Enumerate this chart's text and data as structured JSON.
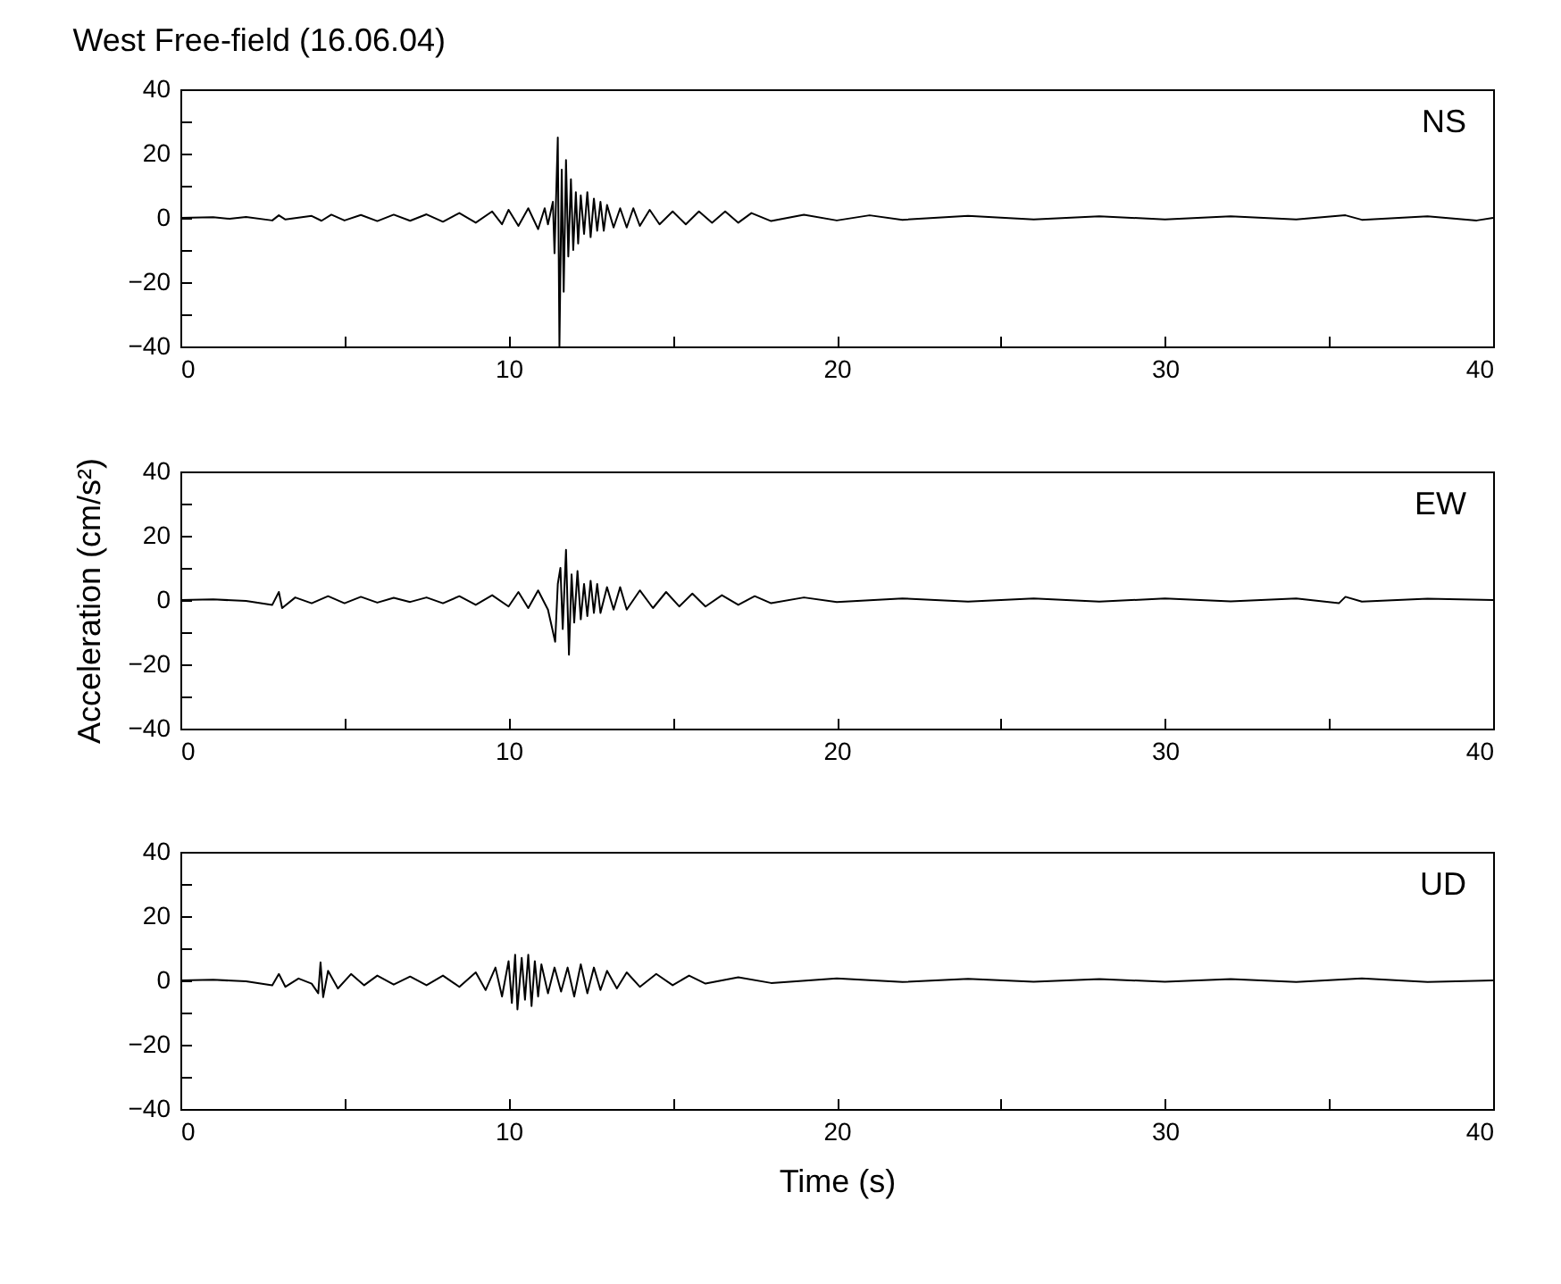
{
  "chart_data": [
    {
      "type": "line",
      "title": "West Free-field (16.06.04)",
      "xlim": [
        0,
        40
      ],
      "ylim": [
        -40,
        40
      ],
      "xticks": [
        0,
        {
          "value": 5,
          "label": null
        },
        10,
        {
          "value": 15,
          "label": null
        },
        20,
        {
          "value": 25,
          "label": null
        },
        30,
        {
          "value": 35,
          "label": null
        },
        40
      ],
      "yticks": [
        -40,
        {
          "value": -30,
          "label": null
        },
        -20,
        {
          "value": -10,
          "label": null
        },
        0,
        {
          "value": 10,
          "label": null
        },
        20,
        {
          "value": 30,
          "label": null
        },
        40
      ],
      "series": [
        {
          "name": "NS",
          "color": "#000000",
          "x": [
            0,
            1,
            1.5,
            2,
            2.8,
            3,
            3.2,
            4,
            4.3,
            4.6,
            5,
            5.5,
            6,
            6.5,
            7,
            7.5,
            8,
            8.5,
            9,
            9.5,
            9.8,
            10,
            10.3,
            10.6,
            10.9,
            11.1,
            11.2,
            11.35,
            11.4,
            11.5,
            11.55,
            11.62,
            11.68,
            11.75,
            11.82,
            11.9,
            11.97,
            12.05,
            12.12,
            12.2,
            12.3,
            12.4,
            12.5,
            12.6,
            12.7,
            12.8,
            12.9,
            13,
            13.2,
            13.4,
            13.6,
            13.8,
            14,
            14.3,
            14.6,
            15,
            15.4,
            15.8,
            16.2,
            16.6,
            17,
            17.4,
            18,
            19,
            20,
            21,
            22,
            24,
            26,
            28,
            30,
            32,
            34,
            35.5,
            36,
            38,
            39.5,
            40
          ],
          "values": [
            0,
            0.2,
            -0.3,
            0.3,
            -0.8,
            0.8,
            -0.5,
            0.6,
            -0.9,
            1,
            -0.8,
            0.9,
            -1,
            1,
            -0.9,
            1.1,
            -1.2,
            1.5,
            -1.5,
            2,
            -2,
            2.5,
            -2.5,
            3,
            -3.5,
            3,
            -2,
            5,
            -11,
            25,
            -40,
            15,
            -23,
            18,
            -12,
            12,
            -10,
            8,
            -8,
            7,
            -5,
            8,
            -6,
            6,
            -4,
            5,
            -4,
            4,
            -3,
            3,
            -3,
            3,
            -2.5,
            2.5,
            -2,
            2,
            -2,
            2,
            -1.5,
            2,
            -1.5,
            1.5,
            -1,
            1,
            -0.8,
            0.8,
            -0.6,
            0.6,
            -0.5,
            0.5,
            -0.5,
            0.5,
            -0.5,
            0.8,
            -0.6,
            0.5,
            -0.8,
            0
          ]
        }
      ]
    },
    {
      "type": "line",
      "ylabel": "Acceleration (cm/s²)",
      "xlim": [
        0,
        40
      ],
      "ylim": [
        -40,
        40
      ],
      "xticks": [
        0,
        {
          "value": 5,
          "label": null
        },
        10,
        {
          "value": 15,
          "label": null
        },
        20,
        {
          "value": 25,
          "label": null
        },
        30,
        {
          "value": 35,
          "label": null
        },
        40
      ],
      "yticks": [
        -40,
        {
          "value": -30,
          "label": null
        },
        -20,
        {
          "value": -10,
          "label": null
        },
        0,
        {
          "value": 10,
          "label": null
        },
        20,
        {
          "value": 30,
          "label": null
        },
        40
      ],
      "series": [
        {
          "name": "EW",
          "color": "#000000",
          "x": [
            0,
            1,
            2,
            2.8,
            3,
            3.1,
            3.5,
            4,
            4.5,
            5,
            5.5,
            6,
            6.5,
            7,
            7.5,
            8,
            8.5,
            9,
            9.5,
            10,
            10.3,
            10.6,
            10.9,
            11.2,
            11.42,
            11.5,
            11.58,
            11.65,
            11.75,
            11.84,
            11.92,
            12,
            12.1,
            12.2,
            12.3,
            12.4,
            12.5,
            12.6,
            12.7,
            12.8,
            13,
            13.2,
            13.4,
            13.6,
            14,
            14.4,
            14.8,
            15.2,
            15.6,
            16,
            16.5,
            17,
            17.5,
            18,
            19,
            20,
            22,
            24,
            26,
            28,
            30,
            32,
            34,
            35.3,
            35.5,
            36,
            38,
            40
          ],
          "values": [
            0,
            0.2,
            -0.3,
            -1.5,
            2.5,
            -2.5,
            0.8,
            -1,
            1.2,
            -1,
            1,
            -0.8,
            0.7,
            -0.6,
            0.8,
            -1,
            1.2,
            -1.5,
            1.5,
            -2,
            2.5,
            -2.5,
            3,
            -3,
            -13,
            5,
            10,
            -9,
            15.6,
            -17,
            8,
            -7,
            9,
            -6,
            5,
            -5,
            6,
            -4,
            5,
            -4,
            4,
            -3,
            4,
            -3,
            3,
            -2.5,
            2.5,
            -2,
            2,
            -2,
            1.5,
            -1.5,
            1.2,
            -1,
            0.8,
            -0.6,
            0.5,
            -0.5,
            0.5,
            -0.5,
            0.5,
            -0.4,
            0.5,
            -1,
            1,
            -0.5,
            0.4,
            0
          ]
        }
      ]
    },
    {
      "type": "line",
      "xlabel": "Time (s)",
      "xlim": [
        0,
        40
      ],
      "ylim": [
        -40,
        40
      ],
      "xticks": [
        0,
        {
          "value": 5,
          "label": null
        },
        10,
        {
          "value": 15,
          "label": null
        },
        20,
        {
          "value": 25,
          "label": null
        },
        30,
        {
          "value": 35,
          "label": null
        },
        40
      ],
      "yticks": [
        -40,
        {
          "value": -30,
          "label": null
        },
        -20,
        {
          "value": -10,
          "label": null
        },
        0,
        {
          "value": 10,
          "label": null
        },
        20,
        {
          "value": 30,
          "label": null
        },
        40
      ],
      "series": [
        {
          "name": "UD",
          "color": "#000000",
          "x": [
            0,
            1,
            2,
            2.8,
            3,
            3.2,
            3.6,
            4,
            4.2,
            4.27,
            4.35,
            4.5,
            4.8,
            5.2,
            5.6,
            6,
            6.5,
            7,
            7.5,
            8,
            8.5,
            9,
            9.3,
            9.6,
            9.8,
            10,
            10.1,
            10.2,
            10.27,
            10.4,
            10.5,
            10.6,
            10.7,
            10.8,
            10.9,
            11,
            11.2,
            11.4,
            11.6,
            11.8,
            12,
            12.2,
            12.4,
            12.6,
            12.8,
            13,
            13.3,
            13.6,
            14,
            14.5,
            15,
            15.5,
            16,
            17,
            18,
            20,
            22,
            24,
            26,
            28,
            30,
            32,
            34,
            36,
            38,
            40
          ],
          "values": [
            0,
            0.2,
            -0.3,
            -1.5,
            2,
            -2,
            0.6,
            -1,
            -4,
            5.6,
            -5.2,
            3,
            -2.5,
            2,
            -1.5,
            1.5,
            -1.3,
            1.2,
            -1.5,
            1.5,
            -2,
            2.5,
            -3,
            4,
            -5,
            6,
            -7,
            8,
            -9,
            7,
            -6,
            8,
            -8,
            6,
            -5,
            5,
            -4,
            4,
            -3.5,
            4,
            -5,
            5,
            -4,
            4,
            -3,
            3,
            -2.5,
            2.5,
            -2,
            2,
            -1.5,
            1.5,
            -1,
            1,
            -0.8,
            0.6,
            -0.5,
            0.5,
            -0.4,
            0.4,
            -0.4,
            0.4,
            -0.5,
            0.6,
            -0.5,
            0
          ]
        }
      ]
    }
  ]
}
